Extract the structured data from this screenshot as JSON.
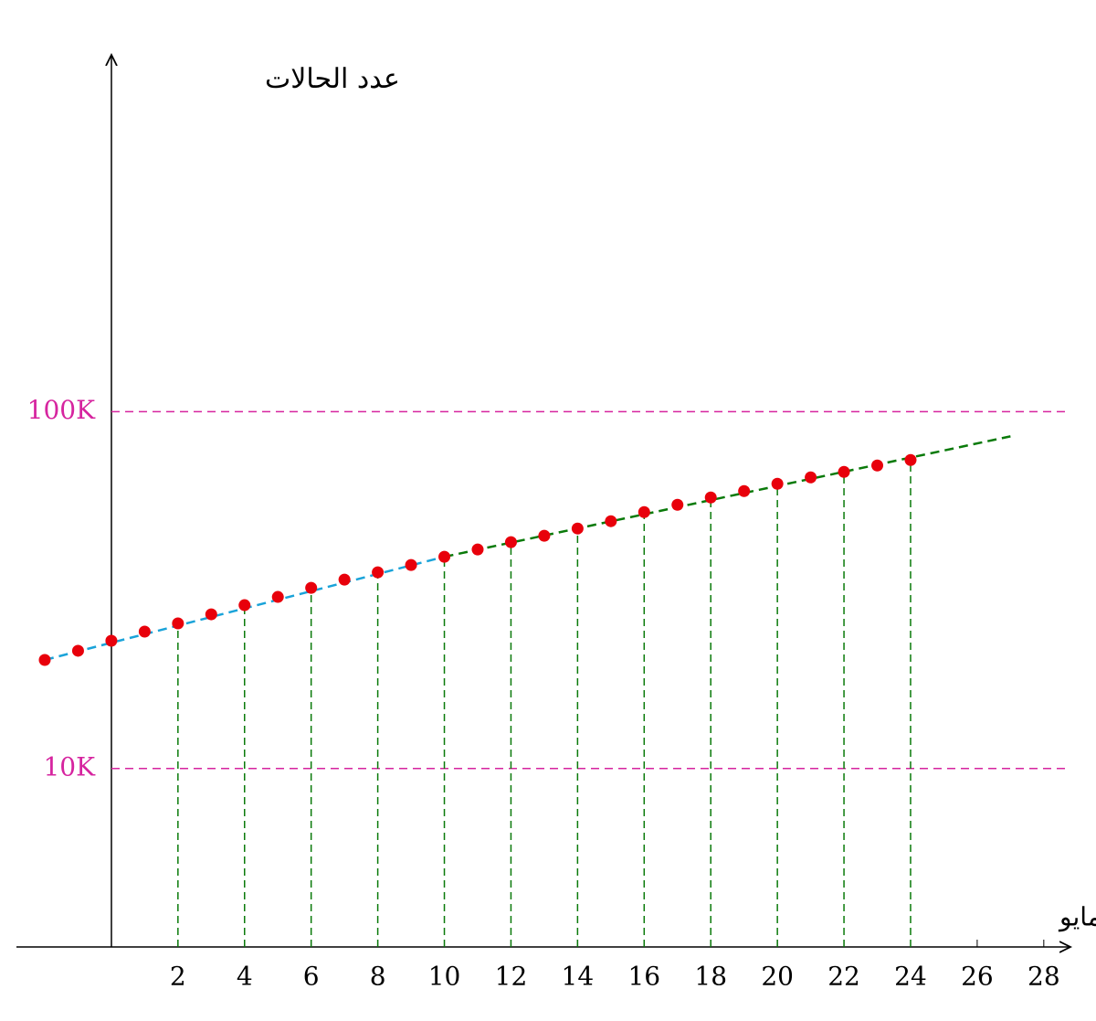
{
  "chart_data": {
    "type": "scatter",
    "y_label": "عدد الحالات",
    "x_label": "مايو",
    "xlim": [
      -2.85,
      28.8
    ],
    "ylim": [
      3162,
      1000000
    ],
    "log_y": true,
    "xticks": [
      2,
      4,
      6,
      8,
      10,
      12,
      14,
      16,
      18,
      20,
      22,
      24,
      26,
      28
    ],
    "yticks": [
      {
        "value": 10000,
        "label": "10K"
      },
      {
        "value": 100000,
        "label": "100K"
      }
    ],
    "ytick_color": "#d6249f",
    "droplines_every": 2,
    "dropline_color": "#0a7a0a",
    "series": [
      {
        "type": "scatter",
        "color": "#e8000b",
        "x": [
          -2,
          -1,
          0,
          1,
          2,
          3,
          4,
          5,
          6,
          7,
          8,
          9,
          10,
          11,
          12,
          13,
          14,
          15,
          16,
          17,
          18,
          19,
          20,
          21,
          22,
          23,
          24
        ],
        "values": [
          20150,
          21380,
          22810,
          24190,
          25510,
          27050,
          28700,
          30260,
          32090,
          33840,
          35470,
          37180,
          39210,
          41110,
          43090,
          44910,
          47060,
          49330,
          52320,
          54840,
          57480,
          59920,
          62810,
          65450,
          67810,
          70660,
          73210
        ]
      },
      {
        "type": "line",
        "color": "#1aa3d9",
        "x": [
          -2,
          10
        ],
        "values": [
          20150,
          39210
        ]
      },
      {
        "type": "line",
        "color": "#0a7a0a",
        "x": [
          10,
          27
        ],
        "values": [
          39210,
          85300
        ]
      }
    ]
  }
}
